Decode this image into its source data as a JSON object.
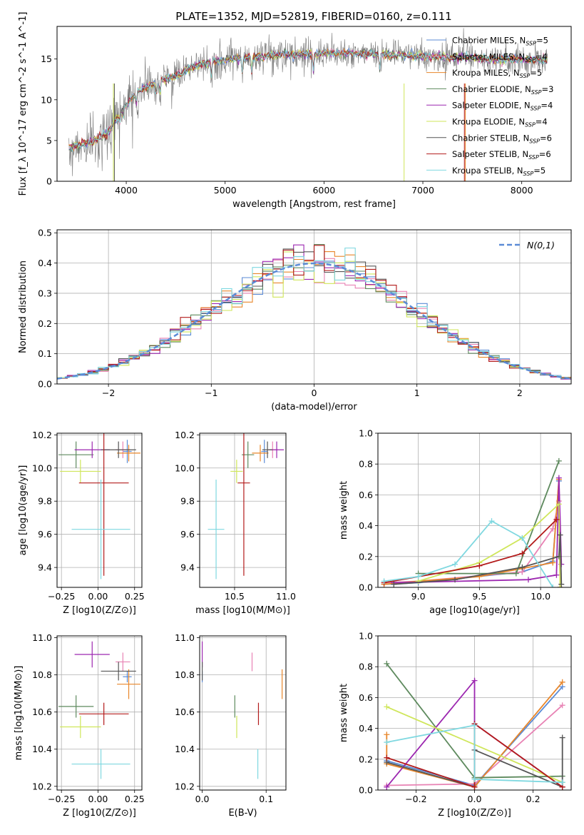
{
  "figure_title": "PLATE=1352, MJD=52819, FIBERID=0160, z=0.111",
  "colors": {
    "chabrier_miles": "#5b8bd6",
    "salpeter_miles": "#e882b4",
    "kroupa_miles": "#e8862a",
    "chabrier_elodie": "#5e8a5e",
    "salpeter_elodie": "#9c27b0",
    "kroupa_elodie": "#cfe65a",
    "chabrier_stelib": "#555555",
    "salpeter_stelib": "#b31b1b",
    "kroupa_stelib": "#7fd8e0",
    "gaussian": "#5b8bd6",
    "grid": "#b0b0b0"
  },
  "legend_entries": [
    "Chabrier MILES, N_SSP=5",
    "Salpeter MILES, N_SSP=4",
    "Kroupa MILES, N_SSP=5",
    "Chabrier ELODIE, N_SSP=3",
    "Salpeter ELODIE, N_SSP=4",
    "Kroupa ELODIE, N_SSP=4",
    "Chabrier STELIB, N_SSP=6",
    "Salpeter STELIB, N_SSP=6",
    "Kroupa STELIB, N_SSP=5"
  ],
  "chart_data": [
    {
      "id": "spectrum",
      "type": "line",
      "title": "PLATE=1352, MJD=52819, FIBERID=0160, z=0.111",
      "xlabel": "wavelength [Angstrom, rest frame]",
      "ylabel": "Flux [f_λ 10^-17 erg cm^-2 s^-1 A^-1]",
      "xlim": [
        3300,
        8500
      ],
      "ylim": [
        0,
        19
      ],
      "xticks": [
        4000,
        5000,
        6000,
        7000,
        8000
      ],
      "yticks": [
        0,
        5,
        10,
        15
      ],
      "legend_location": "upper right",
      "continuum_knots": {
        "x": [
          3420,
          3500,
          3650,
          3800,
          3950,
          4100,
          4300,
          4500,
          4700,
          4900,
          5100,
          5300,
          5500,
          5700,
          5900,
          6100,
          6300,
          6500,
          6700,
          6900,
          7100,
          7300,
          7500,
          7700,
          7900,
          8100,
          8260
        ],
        "y": [
          4.2,
          4.4,
          4.8,
          5.8,
          8.5,
          11.0,
          12.0,
          13.0,
          14.2,
          14.8,
          15.0,
          15.3,
          15.5,
          15.6,
          15.6,
          15.8,
          15.7,
          15.6,
          15.5,
          15.4,
          15.3,
          15.2,
          15.1,
          15.0,
          15.0,
          14.9,
          14.8
        ]
      }
    },
    {
      "id": "residual_distribution",
      "type": "bar",
      "xlabel": "(data-model)/error",
      "ylabel": "Normed distribution",
      "xlim": [
        -2.5,
        2.5
      ],
      "ylim": [
        0,
        0.51
      ],
      "xticks": [
        -2,
        -1,
        0,
        1,
        2
      ],
      "yticks": [
        0.0,
        0.1,
        0.2,
        0.3,
        0.4,
        0.5
      ],
      "legend_location": "upper right",
      "gaussian_label": "N(0,1)",
      "bin_width": 0.1
    },
    {
      "id": "age_vs_Z",
      "type": "scatter",
      "xlabel": "Z [log10(Z/Z⊙)]",
      "ylabel": "age [log10(age/yr)]",
      "xlim": [
        -0.28,
        0.3
      ],
      "ylim": [
        9.28,
        10.21
      ],
      "xticks": [
        -0.25,
        0.0,
        0.25
      ],
      "yticks": [
        9.4,
        9.6,
        9.8,
        10.0,
        10.2
      ],
      "points": [
        {
          "series": "Chabrier MILES",
          "x": 0.2,
          "xerr": 0.03,
          "y": 10.1,
          "yerr": 0.07
        },
        {
          "series": "Salpeter MILES",
          "x": 0.17,
          "xerr": 0.05,
          "y": 10.11,
          "yerr": 0.05
        },
        {
          "series": "Kroupa MILES",
          "x": 0.21,
          "xerr": 0.08,
          "y": 10.09,
          "yerr": 0.05
        },
        {
          "series": "Chabrier ELODIE",
          "x": -0.15,
          "xerr": 0.12,
          "y": 10.08,
          "yerr": 0.08
        },
        {
          "series": "Salpeter ELODIE",
          "x": -0.04,
          "xerr": 0.12,
          "y": 10.11,
          "yerr": 0.05
        },
        {
          "series": "Kroupa ELODIE",
          "x": -0.12,
          "xerr": 0.14,
          "y": 9.98,
          "yerr": 0.07
        },
        {
          "series": "Chabrier STELIB",
          "x": 0.14,
          "xerr": 0.12,
          "y": 10.11,
          "yerr": 0.05
        },
        {
          "series": "Salpeter STELIB",
          "x": 0.04,
          "xerr": 0.17,
          "y": 9.91,
          "yerr": 0.56
        },
        {
          "series": "Kroupa STELIB",
          "x": 0.02,
          "xerr": 0.2,
          "y": 9.63,
          "yerr": 0.3
        }
      ]
    },
    {
      "id": "age_vs_mass",
      "type": "scatter",
      "xlabel": "mass [log10(M/M⊙)]",
      "ylabel": "",
      "xlim": [
        10.16,
        11.0
      ],
      "ylim": [
        9.28,
        10.21
      ],
      "xticks": [
        10.5,
        11.0
      ],
      "yticks": [
        9.4,
        9.6,
        9.8,
        10.0,
        10.2
      ],
      "points": [
        {
          "series": "Chabrier MILES",
          "x": 10.79,
          "xerr": 0.03,
          "y": 10.1,
          "yerr": 0.07
        },
        {
          "series": "Salpeter MILES",
          "x": 10.87,
          "xerr": 0.05,
          "y": 10.11,
          "yerr": 0.05
        },
        {
          "series": "Kroupa MILES",
          "x": 10.75,
          "xerr": 0.08,
          "y": 10.09,
          "yerr": 0.05
        },
        {
          "series": "Chabrier ELODIE",
          "x": 10.63,
          "xerr": 0.06,
          "y": 10.08,
          "yerr": 0.08
        },
        {
          "series": "Salpeter ELODIE",
          "x": 10.91,
          "xerr": 0.07,
          "y": 10.11,
          "yerr": 0.05
        },
        {
          "series": "Kroupa ELODIE",
          "x": 10.52,
          "xerr": 0.06,
          "y": 9.98,
          "yerr": 0.07
        },
        {
          "series": "Chabrier STELIB",
          "x": 10.82,
          "xerr": 0.05,
          "y": 10.11,
          "yerr": 0.05
        },
        {
          "series": "Salpeter STELIB",
          "x": 10.59,
          "xerr": 0.06,
          "y": 9.91,
          "yerr": 0.56
        },
        {
          "series": "Kroupa STELIB",
          "x": 10.32,
          "xerr": 0.08,
          "y": 9.63,
          "yerr": 0.3
        }
      ]
    },
    {
      "id": "mass_weight_vs_age",
      "type": "line",
      "xlabel": "age [log10(age/yr)]",
      "ylabel": "mass weight",
      "xlim": [
        8.67,
        10.25
      ],
      "ylim": [
        0,
        1
      ],
      "xticks": [
        9.0,
        9.5,
        10.0
      ],
      "yticks": [
        0.0,
        0.2,
        0.4,
        0.6,
        0.8,
        1.0
      ],
      "series": [
        {
          "name": "Chabrier MILES",
          "x": [
            8.72,
            9.0,
            9.85,
            10.1,
            10.15,
            10.16
          ],
          "y": [
            0.02,
            0.03,
            0.1,
            0.17,
            0.69,
            0.0
          ]
        },
        {
          "name": "Salpeter MILES",
          "x": [
            8.72,
            9.0,
            9.85,
            10.1,
            10.15,
            10.16
          ],
          "y": [
            0.03,
            0.04,
            0.1,
            0.38,
            0.56,
            0.0
          ]
        },
        {
          "name": "Kroupa MILES",
          "x": [
            8.72,
            9.0,
            9.5,
            10.1,
            10.15,
            10.16
          ],
          "y": [
            0.02,
            0.04,
            0.07,
            0.16,
            0.7,
            0.0
          ]
        },
        {
          "name": "Chabrier ELODIE",
          "x": [
            9.0,
            9.8,
            10.15
          ],
          "y": [
            0.09,
            0.09,
            0.82
          ]
        },
        {
          "name": "Salpeter ELODIE",
          "x": [
            8.8,
            9.9,
            10.13,
            10.15,
            10.17
          ],
          "y": [
            0.03,
            0.05,
            0.08,
            0.71,
            0.15
          ]
        },
        {
          "name": "Kroupa ELODIE",
          "x": [
            9.0,
            9.5,
            9.85,
            10.15,
            10.16
          ],
          "y": [
            0.04,
            0.16,
            0.32,
            0.54,
            0.0
          ]
        },
        {
          "name": "Chabrier STELIB",
          "x": [
            8.8,
            9.3,
            9.85,
            10.15,
            10.16,
            10.17
          ],
          "y": [
            0.02,
            0.05,
            0.13,
            0.2,
            0.34,
            0.02
          ]
        },
        {
          "name": "Salpeter STELIB",
          "x": [
            8.72,
            9.5,
            9.85,
            10.13
          ],
          "y": [
            0.03,
            0.14,
            0.22,
            0.44
          ]
        },
        {
          "name": "Kroupa STELIB",
          "x": [
            8.72,
            9.0,
            9.3,
            9.6,
            9.85,
            10.1
          ],
          "y": [
            0.04,
            0.07,
            0.15,
            0.43,
            0.32,
            0.0
          ]
        }
      ]
    },
    {
      "id": "mass_vs_Z",
      "type": "scatter",
      "xlabel": "Z [log10(Z/Z⊙)]",
      "ylabel": "mass [log10(M/M⊙)]",
      "xlim": [
        -0.28,
        0.3
      ],
      "ylim": [
        10.18,
        11.01
      ],
      "xticks": [
        -0.25,
        0.0,
        0.25
      ],
      "yticks": [
        10.2,
        10.4,
        10.6,
        10.8,
        11.0
      ],
      "points": [
        {
          "series": "Chabrier MILES",
          "x": 0.2,
          "xerr": 0.03,
          "y": 10.79,
          "yerr": 0.03
        },
        {
          "series": "Salpeter MILES",
          "x": 0.17,
          "xerr": 0.05,
          "y": 10.87,
          "yerr": 0.05
        },
        {
          "series": "Kroupa MILES",
          "x": 0.21,
          "xerr": 0.08,
          "y": 10.75,
          "yerr": 0.08
        },
        {
          "series": "Chabrier ELODIE",
          "x": -0.15,
          "xerr": 0.12,
          "y": 10.63,
          "yerr": 0.06
        },
        {
          "series": "Salpeter ELODIE",
          "x": -0.04,
          "xerr": 0.12,
          "y": 10.91,
          "yerr": 0.07
        },
        {
          "series": "Kroupa ELODIE",
          "x": -0.12,
          "xerr": 0.14,
          "y": 10.52,
          "yerr": 0.06
        },
        {
          "series": "Chabrier STELIB",
          "x": 0.14,
          "xerr": 0.12,
          "y": 10.82,
          "yerr": 0.05
        },
        {
          "series": "Salpeter STELIB",
          "x": 0.04,
          "xerr": 0.17,
          "y": 10.59,
          "yerr": 0.06
        },
        {
          "series": "Kroupa STELIB",
          "x": 0.02,
          "xerr": 0.2,
          "y": 10.32,
          "yerr": 0.08
        }
      ]
    },
    {
      "id": "mass_vs_ebv",
      "type": "scatter",
      "xlabel": "E(B-V)",
      "ylabel": "",
      "xlim": [
        -0.004,
        0.131
      ],
      "ylim": [
        10.18,
        11.01
      ],
      "xticks": [
        0.0,
        0.1
      ],
      "yticks": [
        10.2,
        10.4,
        10.6,
        10.8,
        11.0
      ],
      "points": [
        {
          "series": "Chabrier MILES",
          "x": 0.0,
          "y": 10.79,
          "yerr": 0.03
        },
        {
          "series": "Salpeter MILES",
          "x": 0.078,
          "y": 10.87,
          "yerr": 0.05
        },
        {
          "series": "Kroupa MILES",
          "x": 0.125,
          "y": 10.75,
          "yerr": 0.08
        },
        {
          "series": "Chabrier ELODIE",
          "x": 0.051,
          "y": 10.63,
          "yerr": 0.06
        },
        {
          "series": "Salpeter ELODIE",
          "x": 0.0,
          "y": 10.91,
          "yerr": 0.07
        },
        {
          "series": "Kroupa ELODIE",
          "x": 0.054,
          "y": 10.52,
          "yerr": 0.06
        },
        {
          "series": "Chabrier STELIB",
          "x": 0.0,
          "y": 10.82,
          "yerr": 0.05
        },
        {
          "series": "Salpeter STELIB",
          "x": 0.088,
          "y": 10.59,
          "yerr": 0.06
        },
        {
          "series": "Kroupa STELIB",
          "x": 0.087,
          "y": 10.32,
          "yerr": 0.08
        }
      ]
    },
    {
      "id": "mass_weight_vs_Z",
      "type": "line",
      "xlabel": "Z [log10(Z/Z⊙)]",
      "ylabel": "mass weight",
      "xlim": [
        -0.33,
        0.33
      ],
      "ylim": [
        0,
        1
      ],
      "xticks": [
        -0.2,
        0.0,
        0.2
      ],
      "yticks": [
        0.0,
        0.2,
        0.4,
        0.6,
        0.8,
        1.0
      ],
      "series": [
        {
          "name": "Chabrier MILES",
          "x": [
            -0.3,
            0.0,
            0.3
          ],
          "y": [
            0.19,
            0.03,
            0.67
          ]
        },
        {
          "name": "Salpeter MILES",
          "x": [
            -0.3,
            0.0,
            0.3
          ],
          "y": [
            0.03,
            0.04,
            0.55
          ]
        },
        {
          "name": "Kroupa MILES",
          "x": [
            -0.3,
            -0.3,
            0.0,
            0.3
          ],
          "y": [
            0.36,
            0.17,
            0.02,
            0.7
          ]
        },
        {
          "name": "Chabrier ELODIE",
          "x": [
            -0.3,
            0.0,
            0.3
          ],
          "y": [
            0.82,
            0.08,
            0.09
          ]
        },
        {
          "name": "Salpeter ELODIE",
          "x": [
            -0.3,
            0.0,
            0.0,
            0.3
          ],
          "y": [
            0.02,
            0.71,
            0.43,
            0.02
          ]
        },
        {
          "name": "Kroupa ELODIE",
          "x": [
            -0.3,
            0.3
          ],
          "y": [
            0.54,
            0.05
          ]
        },
        {
          "name": "Chabrier STELIB",
          "x": [
            -0.3,
            0.0,
            0.0,
            0.3,
            0.3
          ],
          "y": [
            0.18,
            0.02,
            0.26,
            0.02,
            0.34
          ]
        },
        {
          "name": "Salpeter STELIB",
          "x": [
            -0.3,
            0.0,
            0.0,
            0.3
          ],
          "y": [
            0.21,
            0.02,
            0.43,
            0.02
          ]
        },
        {
          "name": "Kroupa STELIB",
          "x": [
            -0.3,
            0.0,
            0.0,
            0.3
          ],
          "y": [
            0.31,
            0.42,
            0.07,
            0.05
          ]
        }
      ]
    }
  ]
}
